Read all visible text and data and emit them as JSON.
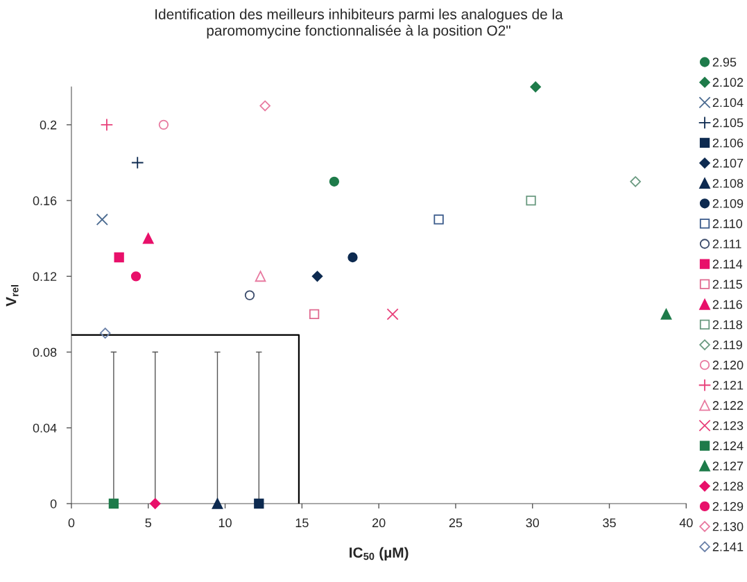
{
  "chart_data": {
    "type": "scatter",
    "title": "Identification des meilleurs inhibiteurs parmi les analogues de la\nparomomycine fonctionnalisée à la position O2\"",
    "xlabel": "IC$_{50}$ (µM)",
    "ylabel": "V$_{rel}$",
    "xlim": [
      0,
      40
    ],
    "xticks": [
      0,
      5,
      10,
      15,
      20,
      25,
      30,
      35,
      40
    ],
    "ylim": [
      0,
      0.22
    ],
    "yticks": [
      0,
      0.04,
      0.08,
      0.12,
      0.16,
      0.2
    ],
    "legend": "right",
    "series": [
      {
        "name": "2.95",
        "color": "#1e7b4a",
        "marker": "circle",
        "x": [
          17.1
        ],
        "values": [
          0.17
        ]
      },
      {
        "name": "2.102",
        "color": "#1e7b4a",
        "marker": "diamond",
        "x": [
          30.2
        ],
        "values": [
          0.22
        ]
      },
      {
        "name": "2.104",
        "color": "#4a6a90",
        "marker": "cross",
        "x": [
          2.0
        ],
        "values": [
          0.15
        ]
      },
      {
        "name": "2.105",
        "color": "#0d2a50",
        "marker": "plus",
        "x": [
          4.3
        ],
        "values": [
          0.18
        ]
      },
      {
        "name": "2.106",
        "color": "#0d2a50",
        "marker": "square",
        "x": [
          12.2
        ],
        "values": [
          0
        ],
        "errors": [
          [
            0,
            0.08
          ]
        ]
      },
      {
        "name": "2.107",
        "color": "#0d2a50",
        "marker": "diamond",
        "x": [
          16.0
        ],
        "values": [
          0.12
        ]
      },
      {
        "name": "2.108",
        "color": "#0d2a50",
        "marker": "triangle",
        "x": [
          9.5
        ],
        "values": [
          0
        ],
        "errors": [
          [
            0,
            0.08
          ]
        ]
      },
      {
        "name": "2.109",
        "color": "#0d2a50",
        "marker": "circle",
        "x": [
          18.3
        ],
        "values": [
          0.13
        ]
      },
      {
        "name": "2.110",
        "color": "#3a5a8a",
        "marker": "square-open",
        "x": [
          23.9
        ],
        "values": [
          0.15
        ]
      },
      {
        "name": "2.111",
        "color": "#3a4a6a",
        "marker": "circle-open",
        "x": [
          11.6
        ],
        "values": [
          0.11
        ]
      },
      {
        "name": "2.114",
        "color": "#e8106a",
        "marker": "square",
        "x": [
          3.1
        ],
        "values": [
          0.13
        ]
      },
      {
        "name": "2.115",
        "color": "#e06a90",
        "marker": "square-open",
        "x": [
          15.8
        ],
        "values": [
          0.1
        ]
      },
      {
        "name": "2.116",
        "color": "#e8106a",
        "marker": "triangle",
        "x": [
          5.0
        ],
        "values": [
          0.14
        ]
      },
      {
        "name": "2.118",
        "color": "#6a9a80",
        "marker": "square-open",
        "x": [
          29.9
        ],
        "values": [
          0.16
        ]
      },
      {
        "name": "2.119",
        "color": "#6a9a80",
        "marker": "diamond-open",
        "x": [
          36.7
        ],
        "values": [
          0.17
        ]
      },
      {
        "name": "2.120",
        "color": "#e87aa0",
        "marker": "circle-open",
        "x": [
          6.0
        ],
        "values": [
          0.2
        ]
      },
      {
        "name": "2.121",
        "color": "#e8407a",
        "marker": "plus",
        "x": [
          2.3
        ],
        "values": [
          0.2
        ]
      },
      {
        "name": "2.122",
        "color": "#e87aa0",
        "marker": "triangle-open",
        "x": [
          12.3
        ],
        "values": [
          0.12
        ]
      },
      {
        "name": "2.123",
        "color": "#e8407a",
        "marker": "cross",
        "x": [
          20.9
        ],
        "values": [
          0.1
        ]
      },
      {
        "name": "2.124",
        "color": "#1e7b4a",
        "marker": "square",
        "x": [
          2.75
        ],
        "values": [
          0
        ],
        "errors": [
          [
            0,
            0.08
          ]
        ]
      },
      {
        "name": "2.127",
        "color": "#1e7b4a",
        "marker": "triangle",
        "x": [
          38.7
        ],
        "values": [
          0.1
        ]
      },
      {
        "name": "2.128",
        "color": "#e8106a",
        "marker": "diamond",
        "x": [
          5.45
        ],
        "values": [
          0
        ],
        "errors": [
          [
            0,
            0.08
          ]
        ]
      },
      {
        "name": "2.129",
        "color": "#e8106a",
        "marker": "circle",
        "x": [
          4.2
        ],
        "values": [
          0.12
        ]
      },
      {
        "name": "2.130",
        "color": "#e87aa0",
        "marker": "diamond-open",
        "x": [
          12.6
        ],
        "values": [
          0.21
        ]
      },
      {
        "name": "2.141",
        "color": "#6a80a8",
        "marker": "diamond-open",
        "x": [
          2.2
        ],
        "values": [
          0.09
        ]
      },
      {
        "type": "line",
        "color": "#000000",
        "marker": "none",
        "x": [
          0,
          14.8,
          14.8
        ],
        "values": [
          0.089,
          0.089,
          0
        ]
      }
    ]
  }
}
